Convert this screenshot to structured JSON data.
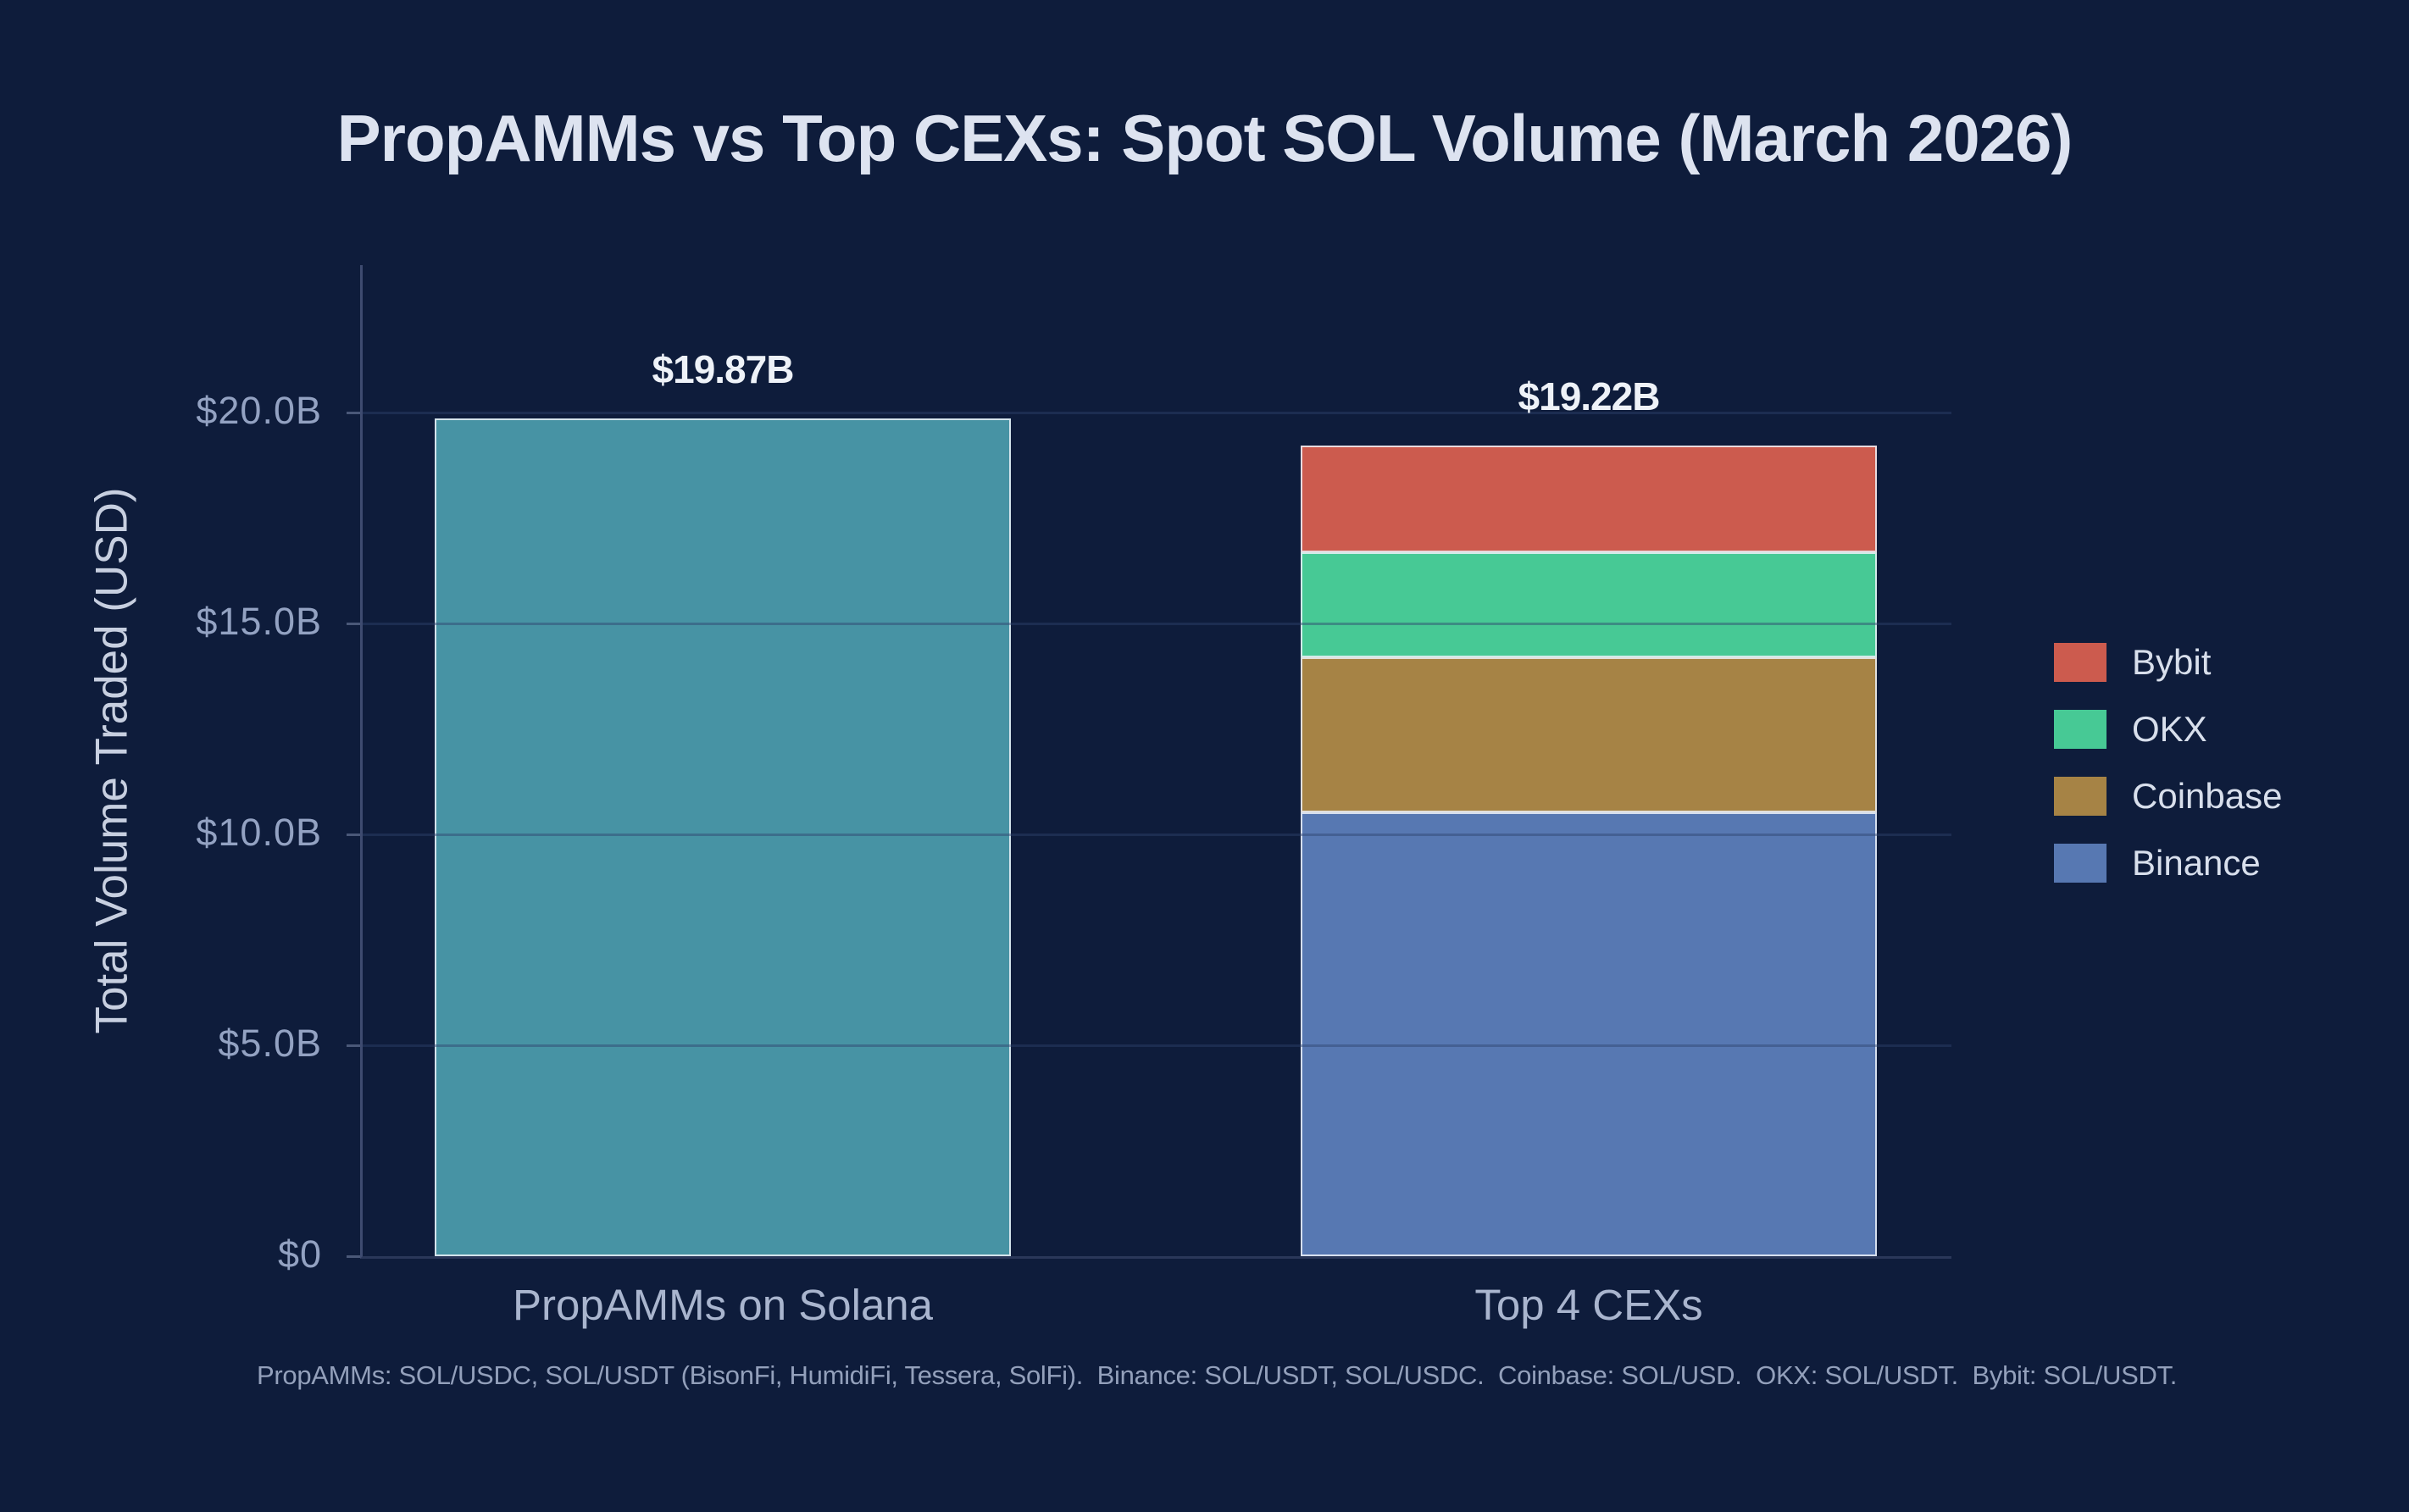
{
  "page": {
    "background": "#0e1c3b"
  },
  "title": "PropAMMs vs Top CEXs: Spot SOL Volume (March 2026)",
  "y_axis": {
    "label": "Total Volume Traded (USD)",
    "ticks": [
      {
        "label": "$20.0B",
        "value": 20
      },
      {
        "label": "$15.0B",
        "value": 15
      },
      {
        "label": "$10.0B",
        "value": 10
      },
      {
        "label": "$5.0B",
        "value": 5
      },
      {
        "label": "$0",
        "value": 0
      }
    ]
  },
  "chart_data": {
    "type": "bar",
    "stacked": true,
    "title": "PropAMMs vs Top CEXs: Spot SOL Volume (March 2026)",
    "xlabel": "",
    "ylabel": "Total Volume Traded (USD)",
    "units": "USD billions",
    "ylim": [
      0,
      23.5
    ],
    "grid": true,
    "legend_position": "right",
    "categories": [
      "PropAMMs on Solana",
      "Top 4 CEXs"
    ],
    "series": [
      {
        "name": "PropAMMs",
        "color": "#4793a4",
        "values": [
          19.87,
          0
        ]
      },
      {
        "name": "Binance",
        "color": "#5778b2",
        "values": [
          0,
          10.52
        ]
      },
      {
        "name": "Coinbase",
        "color": "#a68345",
        "values": [
          0,
          3.69
        ]
      },
      {
        "name": "OKX",
        "color": "#47c995",
        "values": [
          0,
          2.48
        ]
      },
      {
        "name": "Bybit",
        "color": "#cc5b4e",
        "values": [
          0,
          2.53
        ]
      }
    ],
    "bar_totals": [
      {
        "label": "$19.87B",
        "value": 19.87
      },
      {
        "label": "$19.22B",
        "value": 19.22
      }
    ]
  },
  "legend": {
    "items": [
      {
        "label": "Bybit",
        "color": "#cc5b4e"
      },
      {
        "label": "OKX",
        "color": "#47c995"
      },
      {
        "label": "Coinbase",
        "color": "#a68345"
      },
      {
        "label": "Binance",
        "color": "#5778b2"
      }
    ]
  },
  "footnote": "PropAMMs: SOL/USDC, SOL/USDT (BisonFi, HumidiFi, Tessera, SolFi).  Binance: SOL/USDT, SOL/USDC.  Coinbase: SOL/USD.  OKX: SOL/USDT.  Bybit: SOL/USDT."
}
